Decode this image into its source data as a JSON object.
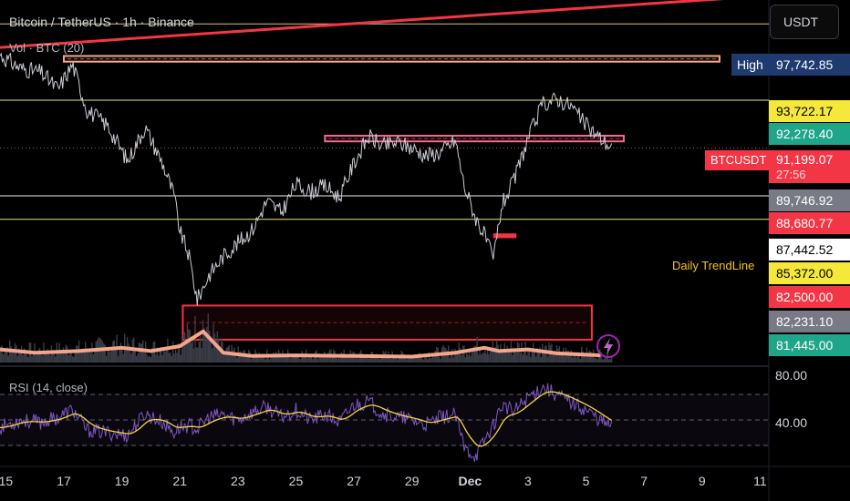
{
  "header": {
    "title": "Bitcoin / TetherUS · 1h · Binance",
    "volume_label": "Vol · BTC (20)",
    "currency": "USDT"
  },
  "annotations": {
    "trendline_label": "Daily TrendLine",
    "high_label": "High",
    "symbol_label": "BTCUSDT",
    "countdown": "27:56"
  },
  "price_tags": [
    {
      "value": "97,742.85",
      "price": 97742.85,
      "bg": "#1e3a6e",
      "fg": "#ffffff"
    },
    {
      "value": "93,722.17",
      "price": 93722.17,
      "bg": "#f5e83a",
      "fg": "#000000"
    },
    {
      "value": "92,278.40",
      "price": 92278.4,
      "bg": "#1fa58a",
      "fg": "#ffffff"
    },
    {
      "value": "91,199.07",
      "price": 91199.07,
      "bg": "#f23645",
      "fg": "#ffffff"
    },
    {
      "value": "89,746.92",
      "price": 89746.92,
      "bg": "#787b86",
      "fg": "#ffffff"
    },
    {
      "value": "88,680.77",
      "price": 88680.77,
      "bg": "#f23645",
      "fg": "#ffffff"
    },
    {
      "value": "87,442.52",
      "price": 87442.52,
      "bg": "#ffffff",
      "fg": "#000000"
    },
    {
      "value": "85,372.00",
      "price": 85372.0,
      "bg": "#f5e83a",
      "fg": "#000000"
    },
    {
      "value": "82,500.00",
      "price": 82500.0,
      "bg": "#f23645",
      "fg": "#ffffff"
    },
    {
      "value": "82,231.10",
      "price": 82231.1,
      "bg": "#787b86",
      "fg": "#ffffff"
    },
    {
      "value": "81,445.00",
      "price": 81445.0,
      "bg": "#1fa58a",
      "fg": "#ffffff"
    }
  ],
  "chart_data": {
    "type": "line",
    "title": "Bitcoin / TetherUS · 1h · Binance",
    "x_ticks": [
      "15",
      "17",
      "19",
      "21",
      "23",
      "25",
      "27",
      "29",
      "Dec",
      "3",
      "5",
      "7",
      "9",
      "11"
    ],
    "x_tick_days": [
      15,
      17,
      19,
      21,
      23,
      25,
      27,
      29,
      31,
      33,
      35,
      37,
      39,
      41
    ],
    "x_range_days": [
      14.8,
      41.3
    ],
    "y_range": [
      79800,
      99000
    ],
    "price_series": {
      "name": "BTCUSDT",
      "day": [
        14.8,
        15.5,
        16.2,
        16.8,
        17.3,
        17.8,
        18.5,
        19.2,
        19.8,
        20.4,
        20.8,
        21.0,
        21.3,
        21.6,
        22.0,
        22.5,
        23.0,
        23.5,
        24.0,
        24.5,
        25.0,
        25.5,
        26.0,
        26.5,
        27.0,
        27.5,
        28.0,
        28.5,
        29.0,
        29.5,
        30.0,
        30.5,
        30.8,
        31.2,
        31.5,
        31.8,
        32.1,
        32.5,
        33.0,
        33.5,
        34.0,
        34.5,
        35.0,
        35.5,
        35.9
      ],
      "price": [
        96100,
        95400,
        95200,
        94300,
        95600,
        93200,
        92400,
        90500,
        92300,
        90400,
        88700,
        86800,
        85600,
        83200,
        84500,
        85500,
        86200,
        86900,
        88400,
        87800,
        89300,
        88900,
        89200,
        88600,
        90400,
        91800,
        91300,
        91500,
        91200,
        90800,
        91000,
        91600,
        89200,
        87500,
        86600,
        85300,
        88200,
        89400,
        91700,
        93500,
        93800,
        93400,
        92400,
        91700,
        91199
      ]
    },
    "rsi": {
      "name": "RSI (14, close)",
      "ticks": [
        80,
        40
      ],
      "y_range": [
        15,
        90
      ],
      "band": [
        70,
        30
      ],
      "day": [
        14.8,
        15.5,
        16.2,
        16.8,
        17.3,
        17.8,
        18.5,
        19.2,
        19.8,
        20.4,
        20.8,
        21.0,
        21.3,
        21.6,
        22.0,
        22.5,
        23.0,
        23.5,
        24.0,
        24.5,
        25.0,
        25.5,
        26.0,
        26.5,
        27.0,
        27.5,
        28.0,
        28.5,
        29.0,
        29.5,
        30.0,
        30.5,
        30.8,
        31.2,
        31.5,
        31.8,
        32.1,
        32.5,
        33.0,
        33.5,
        34.0,
        34.5,
        35.0,
        35.5,
        35.9
      ],
      "value": [
        44,
        50,
        48,
        52,
        58,
        42,
        40,
        38,
        55,
        48,
        40,
        44,
        46,
        43,
        52,
        54,
        50,
        56,
        60,
        52,
        58,
        50,
        54,
        48,
        62,
        64,
        55,
        52,
        50,
        46,
        52,
        54,
        28,
        22,
        34,
        46,
        62,
        56,
        68,
        76,
        70,
        64,
        58,
        50,
        44
      ]
    },
    "volume_ma": {
      "day": [
        14.8,
        16.0,
        17.5,
        19.0,
        20.0,
        21.0,
        21.8,
        22.5,
        23.5,
        25.0,
        27.0,
        29.0,
        30.5,
        31.5,
        32.0,
        33.0,
        34.0,
        35.5
      ],
      "level": [
        0.4,
        0.3,
        0.35,
        0.45,
        0.35,
        0.5,
        0.95,
        0.3,
        0.2,
        0.22,
        0.2,
        0.18,
        0.3,
        0.45,
        0.35,
        0.4,
        0.28,
        0.22
      ]
    },
    "horizontal_levels": [
      {
        "price": 97742.85,
        "color": "#d4c48a"
      },
      {
        "price": 93722.17,
        "color": "#f5e07a"
      },
      {
        "price": 88680.77,
        "color": "#f0f0f0"
      },
      {
        "price": 87442.52,
        "color": "#f5e07a"
      },
      {
        "price": 91199.07,
        "color": "#f23645",
        "dotted": true
      }
    ],
    "trendline": {
      "from": [
        14.8,
        96500
      ],
      "to": [
        41.0,
        99200
      ],
      "color": "#f23645"
    },
    "zones": [
      {
        "from_day": 17.0,
        "to_day": 39.6,
        "top": 96050,
        "bottom": 95750,
        "color": "#f5a58a"
      },
      {
        "from_day": 26.0,
        "to_day": 36.3,
        "top": 91850,
        "bottom": 91550,
        "color": "#f26a8a"
      },
      {
        "from_day": 21.1,
        "to_day": 35.2,
        "top": 82900,
        "bottom": 81100,
        "color": "#f23645"
      },
      {
        "from_day": 31.8,
        "to_day": 32.6,
        "top": 86700,
        "bottom": 86450,
        "color": "#f23645",
        "solid": true
      }
    ]
  }
}
